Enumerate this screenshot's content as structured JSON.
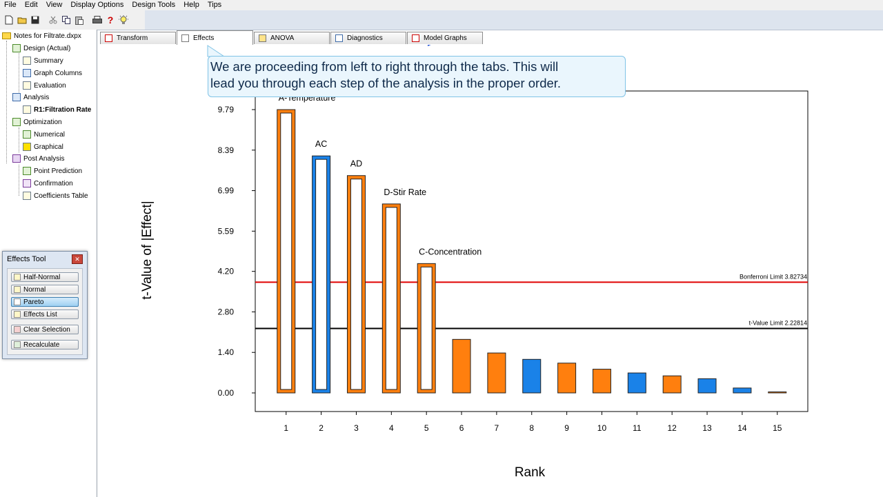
{
  "menu": [
    "File",
    "Edit",
    "View",
    "Display Options",
    "Design Tools",
    "Help",
    "Tips"
  ],
  "toolbar_icons": [
    "new-file-icon",
    "open-folder-icon",
    "save-icon",
    "cut-icon",
    "copy-icon",
    "paste-icon",
    "print-icon",
    "help-icon",
    "tip-bulb-icon"
  ],
  "tree": {
    "root": "Notes for Filtrate.dxpx",
    "design": "Design (Actual)",
    "summary": "Summary",
    "graph_columns": "Graph Columns",
    "evaluation": "Evaluation",
    "analysis": "Analysis",
    "response": "R1:Filtration Rate",
    "optimization": "Optimization",
    "numerical": "Numerical",
    "graphical": "Graphical",
    "post_analysis": "Post Analysis",
    "point_prediction": "Point Prediction",
    "confirmation": "Confirmation",
    "coefficients_table": "Coefficients Table"
  },
  "effects_tool": {
    "title": "Effects Tool",
    "half_normal": "Half-Normal",
    "normal": "Normal",
    "pareto": "Pareto",
    "effects_list": "Effects List",
    "clear_selection": "Clear Selection",
    "recalculate": "Recalculate"
  },
  "tabs": {
    "transform": "Transform",
    "effects": "Effects",
    "anova": "ANOVA",
    "diagnostics": "Diagnostics",
    "model_graphs": "Model Graphs"
  },
  "callout": {
    "line1": "We are proceeding from left to right through the tabs.  This will",
    "line2": "lead you through each step of the analysis in the proper order."
  },
  "colors": {
    "orange": "#ff7f0e",
    "blue": "#1a82e8",
    "bonferroni": "#e00000",
    "tlimit": "#000000",
    "arrow": "#1d4fd6"
  },
  "chart_data": {
    "type": "bar",
    "xlabel": "Rank",
    "ylabel": "t-Value of |Effect|",
    "ylim": [
      0,
      10.5
    ],
    "yticks": [
      "0.00",
      "1.40",
      "2.80",
      "4.20",
      "5.59",
      "6.99",
      "8.39",
      "9.79"
    ],
    "categories": [
      "1",
      "2",
      "3",
      "4",
      "5",
      "6",
      "7",
      "8",
      "9",
      "10",
      "11",
      "12",
      "13",
      "14",
      "15"
    ],
    "values": [
      9.79,
      8.19,
      7.51,
      6.53,
      4.47,
      1.85,
      1.38,
      1.16,
      1.03,
      0.82,
      0.69,
      0.59,
      0.49,
      0.17,
      0.02
    ],
    "colors": [
      "orange",
      "blue",
      "orange",
      "orange",
      "orange",
      "orange",
      "orange",
      "blue",
      "orange",
      "orange",
      "blue",
      "orange",
      "blue",
      "blue",
      "orange"
    ],
    "selected": [
      true,
      true,
      true,
      true,
      true,
      false,
      false,
      false,
      false,
      false,
      false,
      false,
      false,
      false,
      false
    ],
    "labels": [
      "A-Temperature",
      "AC",
      "AD",
      "D-Stir Rate",
      "C-Concentration",
      "",
      "",
      "",
      "",
      "",
      "",
      "",
      "",
      "",
      ""
    ],
    "bonferroni": {
      "value": 3.82734,
      "label": "Bonferroni Limit 3.82734"
    },
    "tlimit": {
      "value": 2.22814,
      "label": "t-Value Limit 2.22814"
    }
  }
}
